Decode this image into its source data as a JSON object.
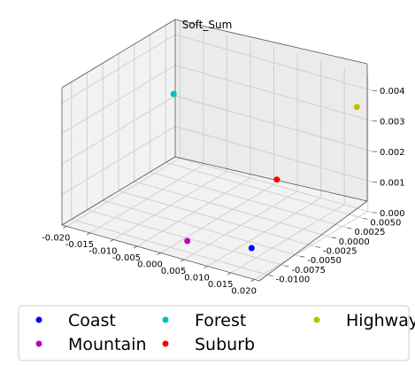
{
  "chart_data": {
    "type": "scatter",
    "title": "Soft_Sum",
    "xlabel": "",
    "ylabel": "",
    "zlabel": "",
    "grid": true,
    "legend_position": "bottom",
    "xlim": [
      -0.021,
      0.021
    ],
    "ylim": [
      -0.0115,
      0.0065
    ],
    "zlim": [
      0,
      0.0045
    ],
    "x_ticks": [
      "-0.020",
      "-0.015",
      "-0.010",
      "-0.005",
      "0.000",
      "0.005",
      "0.010",
      "0.015",
      "0.020"
    ],
    "y_ticks": [
      "-0.0100",
      "-0.0075",
      "-0.0050",
      "-0.0025",
      "0.0000",
      "0.0025",
      "0.0050"
    ],
    "z_ticks": [
      "0.000",
      "0.001",
      "0.002",
      "0.003",
      "0.004"
    ],
    "series": [
      {
        "name": "Coast",
        "color": "#0000ff",
        "x": 0.012,
        "y": -0.006,
        "z": 0.0
      },
      {
        "name": "Forest",
        "color": "#00bfbf",
        "x": -0.018,
        "y": 0.004,
        "z": 0.0025
      },
      {
        "name": "Highway",
        "color": "#bfbf00",
        "x": 0.019,
        "y": 0.0055,
        "z": 0.0035
      },
      {
        "name": "Mountain",
        "color": "#bf00bf",
        "x": 0.001,
        "y": -0.008,
        "z": 0.0
      },
      {
        "name": "Suburb",
        "color": "#ff0000",
        "x": 0.008,
        "y": 0.001,
        "z": 0.0012
      }
    ]
  }
}
